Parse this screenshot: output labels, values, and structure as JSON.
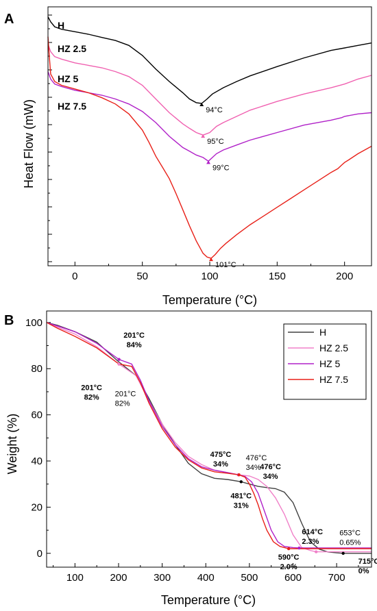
{
  "chart_data": [
    {
      "panel_label": "A",
      "type": "line",
      "xlabel": "Temperature (°C)",
      "ylabel": "Heat Flow (mW)",
      "xlim": [
        -20,
        220
      ],
      "xticks": [
        0,
        50,
        100,
        150,
        200
      ],
      "y_tick_labels_shown": false,
      "grid": false,
      "series": [
        {
          "name": "H",
          "color": "#000000",
          "x": [
            -20,
            -18,
            -15,
            -10,
            0,
            10,
            20,
            30,
            40,
            50,
            60,
            70,
            80,
            85,
            90,
            94,
            98,
            102,
            110,
            120,
            130,
            150,
            170,
            190,
            200,
            210,
            220
          ],
          "y": [
            -2,
            -4,
            -6,
            -7,
            -8,
            -9,
            -10.3,
            -11.5,
            -13.5,
            -17.5,
            -23,
            -28,
            -32.5,
            -35,
            -36.5,
            -36.8,
            -35,
            -33,
            -30.5,
            -28,
            -25.7,
            -22,
            -18.5,
            -15.5,
            -14.5,
            -13.5,
            -12.5
          ]
        },
        {
          "name": "HZ 2.5",
          "color": "#f060b0",
          "x": [
            -20,
            -18,
            -15,
            -10,
            0,
            10,
            20,
            30,
            40,
            50,
            60,
            70,
            80,
            85,
            90,
            95,
            100,
            105,
            110,
            120,
            130,
            150,
            170,
            190,
            200,
            210,
            220
          ],
          "y": [
            -13,
            -16,
            -18,
            -19,
            -20.5,
            -21.5,
            -22.5,
            -24,
            -26,
            -29.5,
            -35,
            -40.5,
            -45,
            -46.8,
            -48.5,
            -49.5,
            -48.5,
            -46,
            -44.5,
            -42,
            -39.5,
            -36,
            -33,
            -30.5,
            -29,
            -27,
            -25.5
          ]
        },
        {
          "name": "HZ 5",
          "color": "#b020c8",
          "x": [
            -20,
            -18,
            -15,
            -10,
            0,
            10,
            20,
            30,
            40,
            50,
            60,
            70,
            80,
            85,
            90,
            95,
            99,
            102,
            105,
            110,
            120,
            130,
            150,
            170,
            190,
            198,
            200,
            210,
            220
          ],
          "y": [
            -24,
            -27,
            -29,
            -30,
            -31.5,
            -32.5,
            -33.5,
            -35,
            -37,
            -40,
            -44.5,
            -50,
            -54.5,
            -56,
            -57.5,
            -58.5,
            -60,
            -58.5,
            -57,
            -55.5,
            -53.5,
            -51.5,
            -48.5,
            -45.5,
            -43.5,
            -42.5,
            -42,
            -41,
            -40.5
          ]
        },
        {
          "name": "HZ 7.5",
          "color": "#e82018",
          "x": [
            -20,
            -19,
            -18,
            -15,
            -10,
            0,
            10,
            20,
            30,
            40,
            50,
            55,
            60,
            65,
            70,
            75,
            80,
            85,
            90,
            95,
            98,
            101,
            104,
            108,
            112,
            120,
            130,
            140,
            150,
            160,
            170,
            180,
            190,
            195,
            198,
            200,
            203,
            210,
            220
          ],
          "y": [
            -10,
            -18,
            -25,
            -28,
            -29.5,
            -31,
            -32.5,
            -34.5,
            -37,
            -41,
            -47.5,
            -52.5,
            -58,
            -62.5,
            -67,
            -73,
            -79.5,
            -86,
            -92,
            -97,
            -98.5,
            -99,
            -97.5,
            -95,
            -93,
            -89.5,
            -85.5,
            -82,
            -78.5,
            -75,
            -71.5,
            -68,
            -64.5,
            -63,
            -61.5,
            -60.5,
            -59.5,
            -57,
            -54
          ]
        }
      ],
      "annotations": [
        {
          "text": "94°C",
          "x": 94,
          "y": -36.8,
          "color": "#000000"
        },
        {
          "text": "95°C",
          "x": 95,
          "y": -49.5,
          "color": "#f060b0"
        },
        {
          "text": "99°C",
          "x": 99,
          "y": -60,
          "color": "#b020c8"
        },
        {
          "text": "101°C",
          "x": 101,
          "y": -99,
          "color": "#e82018"
        }
      ]
    },
    {
      "panel_label": "B",
      "type": "line",
      "xlabel": "Temperature (°C)",
      "ylabel": "Weight (%)",
      "xlim": [
        35,
        780
      ],
      "ylim": [
        -6,
        105
      ],
      "xticks": [
        100,
        200,
        300,
        400,
        500,
        600,
        700
      ],
      "yticks": [
        0,
        20,
        40,
        60,
        80,
        100
      ],
      "legend_position": "top-right",
      "grid": false,
      "series": [
        {
          "name": "H",
          "color": "#404040",
          "x": [
            35,
            60,
            100,
            150,
            200,
            240,
            270,
            300,
            330,
            360,
            390,
            420,
            450,
            481,
            500,
            520,
            540,
            560,
            580,
            600,
            620,
            640,
            660,
            680,
            700,
            715,
            740,
            780
          ],
          "y": [
            100,
            98.8,
            96,
            91.5,
            83,
            77,
            67,
            56,
            47,
            39,
            34.5,
            32.5,
            32,
            31,
            30,
            29,
            28.5,
            28,
            26.5,
            22,
            13,
            5,
            1.8,
            0.6,
            0.2,
            0,
            0,
            0
          ]
        },
        {
          "name": "HZ 2.5",
          "color": "#f080c8",
          "x": [
            35,
            60,
            100,
            150,
            201,
            240,
            270,
            300,
            330,
            360,
            390,
            420,
            450,
            476,
            500,
            520,
            540,
            560,
            580,
            600,
            620,
            640,
            653,
            680,
            720,
            780
          ],
          "y": [
            100,
            98,
            95,
            89.5,
            82,
            77,
            66,
            56,
            48,
            42,
            38.5,
            36,
            35,
            34,
            33.5,
            32,
            29,
            24,
            17,
            8,
            2.5,
            1.2,
            0.65,
            0.65,
            0.65,
            0.65
          ]
        },
        {
          "name": "HZ 5",
          "color": "#b020c8",
          "x": [
            35,
            60,
            100,
            150,
            201,
            230,
            250,
            270,
            300,
            330,
            360,
            390,
            420,
            450,
            475,
            490,
            505,
            520,
            535,
            550,
            565,
            580,
            600,
            614,
            650,
            700,
            780
          ],
          "y": [
            100,
            98.5,
            96,
            91,
            84,
            82,
            75,
            66,
            55,
            47,
            41,
            37.5,
            36,
            35,
            34,
            33.3,
            31,
            26,
            18,
            10,
            5,
            3,
            2.5,
            2.3,
            2.3,
            2.3,
            2.3
          ]
        },
        {
          "name": "HZ 7.5",
          "color": "#e82018",
          "x": [
            35,
            60,
            100,
            150,
            201,
            230,
            250,
            270,
            300,
            330,
            360,
            390,
            420,
            450,
            476,
            490,
            500,
            510,
            520,
            530,
            540,
            555,
            570,
            590,
            620,
            700,
            780
          ],
          "y": [
            100,
            97.5,
            94,
            89,
            82,
            81,
            74,
            65,
            54,
            46,
            40.5,
            37,
            35.3,
            34.7,
            34,
            33,
            30,
            26,
            21,
            15,
            10,
            5,
            3,
            2,
            2,
            2,
            2
          ]
        }
      ],
      "annotations": [
        {
          "lines": [
            "201°C",
            "84%"
          ],
          "x": 201,
          "y": 84,
          "color": "#b020c8",
          "bold": true
        },
        {
          "lines": [
            "201°C",
            "82%"
          ],
          "x": 201,
          "y": 82,
          "color": "#e82018",
          "bold": true
        },
        {
          "lines": [
            "201°C",
            "82%"
          ],
          "x": 201,
          "y": 82,
          "color": "#f080c8",
          "bold": false
        },
        {
          "lines": [
            "475°C",
            "34%"
          ],
          "x": 475,
          "y": 34,
          "color": "#b020c8",
          "bold": true
        },
        {
          "lines": [
            "476°C",
            "34%"
          ],
          "x": 476,
          "y": 34,
          "color": "#f080c8",
          "bold": false
        },
        {
          "lines": [
            "476°C",
            "34%"
          ],
          "x": 476,
          "y": 34,
          "color": "#e82018",
          "bold": true
        },
        {
          "lines": [
            "481°C",
            "31%"
          ],
          "x": 481,
          "y": 31,
          "color": "#000000",
          "bold": true
        },
        {
          "lines": [
            "614°C",
            "2.3%"
          ],
          "x": 614,
          "y": 2.3,
          "color": "#b020c8",
          "bold": true
        },
        {
          "lines": [
            "653°C",
            "0.65%"
          ],
          "x": 653,
          "y": 0.65,
          "color": "#f080c8",
          "bold": false
        },
        {
          "lines": [
            "590°C",
            "2.0%"
          ],
          "x": 590,
          "y": 2,
          "color": "#e82018",
          "bold": true
        },
        {
          "lines": [
            "715°C",
            "0%"
          ],
          "x": 715,
          "y": 0,
          "color": "#000000",
          "bold": true
        }
      ]
    }
  ]
}
